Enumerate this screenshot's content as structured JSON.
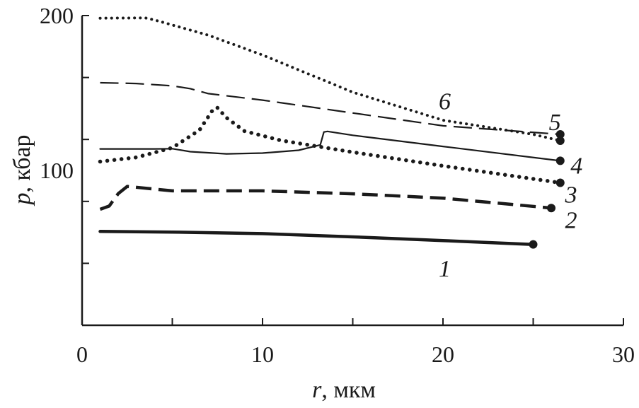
{
  "chart_data": {
    "type": "line",
    "xlabel": {
      "var": "r",
      "unit": ", мкм"
    },
    "ylabel": {
      "var": "p",
      "unit": ", кбар"
    },
    "xlim": [
      0,
      30
    ],
    "ylim": [
      0,
      200
    ],
    "x_ticks": [
      0,
      5,
      10,
      15,
      20,
      25,
      30
    ],
    "x_tick_labels": [
      "0",
      "10",
      "20",
      "30"
    ],
    "x_tick_label_values": [
      0,
      10,
      20,
      30
    ],
    "y_ticks": [
      40,
      80,
      120,
      160,
      200
    ],
    "y_tick_labels": [
      "100",
      "200"
    ],
    "y_tick_label_values": [
      100,
      200
    ],
    "grid": false,
    "legend": "inline labels at line ends",
    "series": [
      {
        "name": "1",
        "style": "solid-thick",
        "end_marker": true,
        "x": [
          1,
          5,
          10,
          15,
          20,
          25
        ],
        "y": [
          60.6,
          60.2,
          59.2,
          57.1,
          54.7,
          52.2
        ]
      },
      {
        "name": "2",
        "style": "dashed-thick",
        "end_marker": true,
        "x": [
          1,
          1.5,
          2,
          2.5,
          5,
          10,
          15,
          20,
          26
        ],
        "y": [
          74.9,
          77,
          85,
          89.7,
          86.8,
          86.8,
          84.9,
          82.1,
          75.7
        ]
      },
      {
        "name": "3",
        "style": "dotted-thick",
        "end_marker": true,
        "x": [
          1,
          3,
          5,
          6.5,
          7.3,
          7.5,
          8,
          9,
          11,
          15,
          20,
          26.5
        ],
        "y": [
          105.7,
          108.4,
          114.6,
          126,
          140,
          140.4,
          134,
          125.4,
          119.4,
          111.8,
          102.9,
          92
        ]
      },
      {
        "name": "4",
        "style": "solid-thin",
        "end_marker": true,
        "x": [
          1,
          4,
          5,
          6,
          8,
          10,
          12,
          13.2,
          13.4,
          13.6,
          15,
          20,
          26.5
        ],
        "y": [
          113.9,
          113.9,
          114,
          112.1,
          110.7,
          111.2,
          113,
          116.5,
          124.8,
          125.2,
          122.7,
          115.5,
          106.2
        ]
      },
      {
        "name": "5",
        "style": "dashed-thin",
        "end_marker": true,
        "x": [
          1,
          3,
          5,
          6,
          7,
          10,
          15,
          20,
          26.5
        ],
        "y": [
          156.6,
          156.1,
          154.6,
          152.8,
          149.6,
          145.4,
          137.1,
          128.8,
          123.3
        ]
      },
      {
        "name": "6",
        "style": "dotted-thin",
        "end_marker": true,
        "x": [
          1,
          3.5,
          4,
          7,
          10,
          15,
          20,
          25,
          26.5
        ],
        "y": [
          198.3,
          198.5,
          197.2,
          187.3,
          174.5,
          150.5,
          132.4,
          123.3,
          119.2
        ]
      }
    ],
    "label_positions_comment": "inline numeric labels near curve ends",
    "labels": [
      {
        "text": "1",
        "x": 20.1,
        "y": 37.1
      },
      {
        "text": "2",
        "x": 27.1,
        "y": 68.3
      },
      {
        "text": "3",
        "x": 27.1,
        "y": 84.6
      },
      {
        "text": "4",
        "x": 27.4,
        "y": 103.5
      },
      {
        "text": "5",
        "x": 26.2,
        "y": 131.5
      },
      {
        "text": "6",
        "x": 20.1,
        "y": 145.0
      }
    ]
  }
}
